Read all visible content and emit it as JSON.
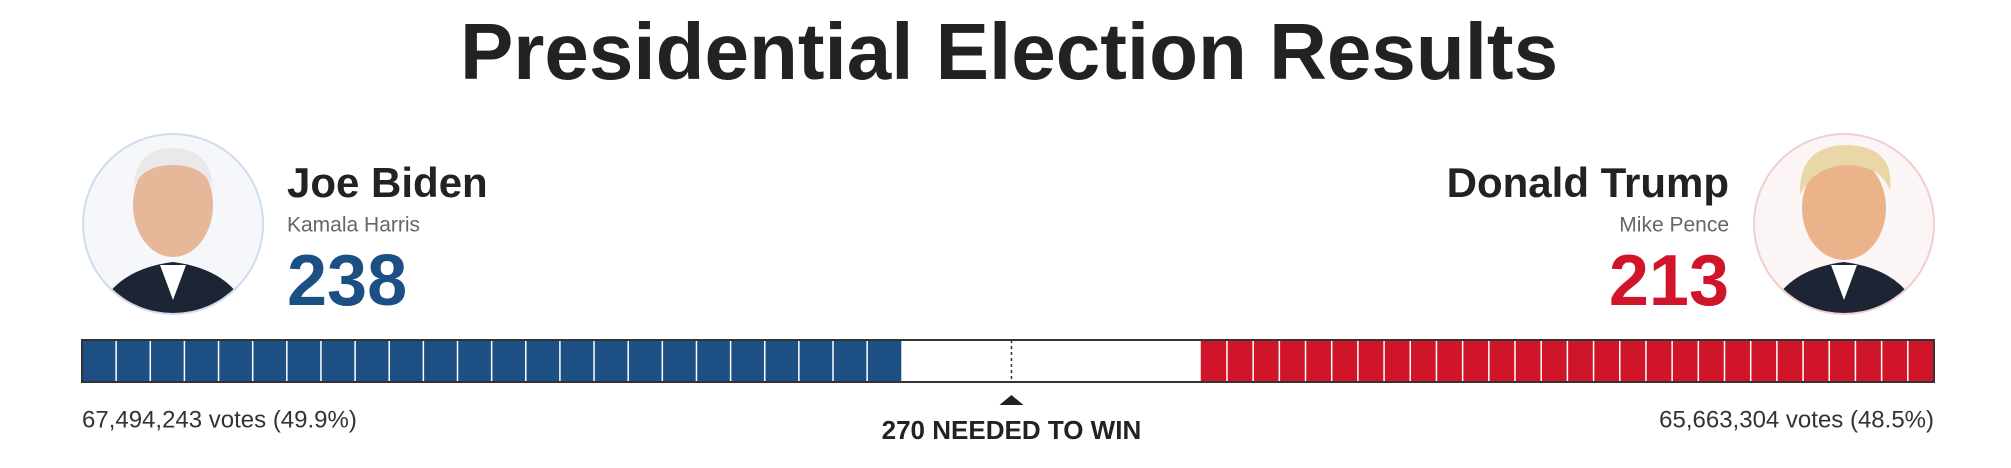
{
  "header": {
    "title": "Presidential Election Results"
  },
  "candidates": [
    {
      "name": "Joe Biden",
      "running_mate": "Kamala Harris",
      "electoral_votes": 238,
      "popular_votes": "67,494,243 votes (49.9%)",
      "color": "#1c4f83"
    },
    {
      "name": "Donald Trump",
      "running_mate": "Mike Pence",
      "electoral_votes": 213,
      "popular_votes": "65,663,304 votes (48.5%)",
      "color": "#d0152a"
    }
  ],
  "bar": {
    "xlim": [
      0,
      538
    ],
    "threshold": {
      "value": 270,
      "label": "270 NEEDED TO WIN"
    }
  }
}
